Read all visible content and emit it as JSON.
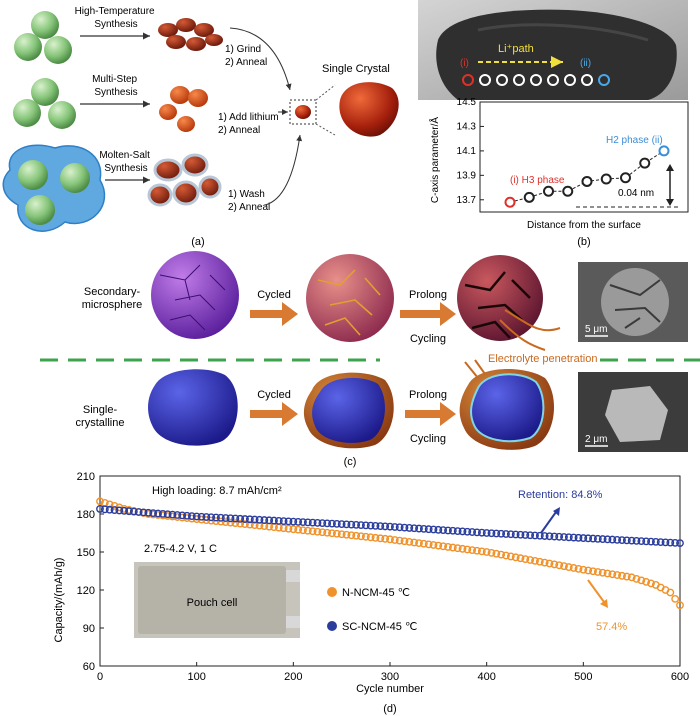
{
  "panel_a": {
    "label": "(a)",
    "routes": [
      {
        "method": "High-Temperature\nSynthesis",
        "steps": [
          "1) Grind",
          "2) Anneal"
        ]
      },
      {
        "method": "Multi-Step\nSynthesis",
        "steps": [
          "1) Add lithium",
          "2) Anneal"
        ]
      },
      {
        "method": "Molten-Salt\nSynthesis",
        "steps": [
          "1) Wash",
          "2) Anneal"
        ]
      }
    ],
    "product": "Single Crystal"
  },
  "panel_b": {
    "label": "(b)",
    "li_path": "Li⁺path",
    "marker_i": "(i)",
    "marker_ii": "(ii)",
    "chart_data": {
      "type": "line",
      "ylabel": "C-axis parameter/Å",
      "xlabel": "Distance from the surface",
      "ylim": [
        13.6,
        14.5
      ],
      "yticks": [
        "14.5",
        "14.3",
        "14.1",
        "13.9",
        "13.7"
      ],
      "x": [
        1,
        2,
        3,
        4,
        5,
        6,
        7,
        8,
        9
      ],
      "y": [
        13.68,
        13.72,
        13.77,
        13.77,
        13.85,
        13.87,
        13.88,
        14.0,
        14.1
      ],
      "annotations": [
        "(i) H3 phase",
        "H2 phase (ii)",
        "0.04 nm"
      ]
    }
  },
  "panel_c": {
    "label": "(c)",
    "rows": [
      {
        "name": "Secondary-\nmicrosphere",
        "arrow1": "Cycled",
        "arrow2a": "Prolong",
        "arrow2b": "Cycling",
        "note": "Electrolyte penetration",
        "scale": "5 μm"
      },
      {
        "name": "Single-\ncrystalline",
        "arrow1": "Cycled",
        "arrow2a": "Prolong",
        "arrow2b": "Cycling",
        "note": "",
        "scale": "2 μm"
      }
    ]
  },
  "panel_d": {
    "label": "(d)",
    "loading": "High loading: 8.7 mAh/cm²",
    "conditions": "2.75-4.2 V, 1 C",
    "photo_label": "Pouch cell",
    "retention_blue": "Retention: 84.8%",
    "retention_orange": "57.4%",
    "chart_data": {
      "type": "scatter",
      "xlabel": "Cycle number",
      "ylabel": "Capacity/(mAh/g)",
      "xlim": [
        0,
        600
      ],
      "ylim": [
        60,
        210
      ],
      "xticks": [
        0,
        100,
        200,
        300,
        400,
        500,
        600
      ],
      "yticks": [
        60,
        90,
        120,
        150,
        180,
        210
      ],
      "series": [
        {
          "name": "N-NCM-45 ℃",
          "color": "#f0922b",
          "x": [
            0,
            25,
            50,
            100,
            150,
            200,
            250,
            300,
            350,
            400,
            450,
            500,
            525,
            550,
            575,
            590,
            600
          ],
          "y": [
            190,
            184,
            180,
            176,
            172,
            168,
            164,
            160,
            155,
            150,
            143,
            136,
            133,
            130,
            124,
            118,
            108
          ]
        },
        {
          "name": "SC-NCM-45 ℃",
          "color": "#2b3d9c",
          "x": [
            0,
            50,
            100,
            200,
            300,
            400,
            500,
            600
          ],
          "y": [
            184,
            181,
            178,
            174,
            170,
            165,
            161,
            157
          ]
        }
      ]
    }
  }
}
